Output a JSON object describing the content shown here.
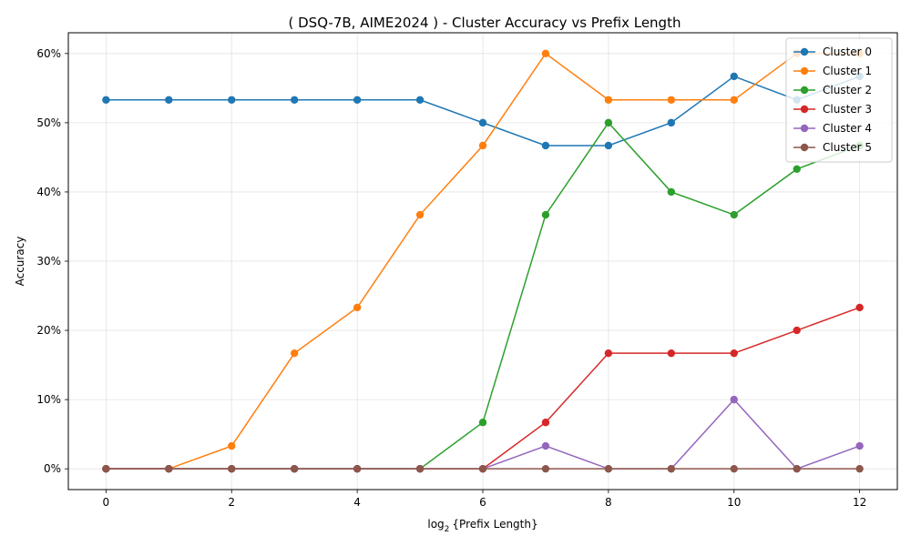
{
  "chart_data": {
    "type": "line",
    "title": "( DSQ-7B, AIME2024 ) - Cluster Accuracy vs Prefix Length",
    "xlabel_prefix": "log",
    "xlabel_sub": "2",
    "xlabel_rest": "{Prefix Length}",
    "ylabel": "Accuracy",
    "x": [
      0,
      1,
      2,
      3,
      4,
      5,
      6,
      7,
      8,
      9,
      10,
      11,
      12
    ],
    "xlim": [
      -0.6,
      12.6
    ],
    "ylim": [
      -0.03,
      0.63
    ],
    "xticks": [
      0,
      2,
      4,
      6,
      8,
      10,
      12
    ],
    "xtick_labels": [
      "0",
      "2",
      "4",
      "6",
      "8",
      "10",
      "12"
    ],
    "yticks": [
      0,
      0.1,
      0.2,
      0.3,
      0.4,
      0.5,
      0.6
    ],
    "ytick_labels": [
      "0%",
      "10%",
      "20%",
      "30%",
      "40%",
      "50%",
      "60%"
    ],
    "grid": true,
    "legend_position": "top-right",
    "series": [
      {
        "name": "Cluster 0",
        "color": "#1f77b4",
        "values": [
          0.533,
          0.533,
          0.533,
          0.533,
          0.533,
          0.533,
          0.5,
          0.467,
          0.467,
          0.5,
          0.567,
          0.533,
          0.567
        ]
      },
      {
        "name": "Cluster 1",
        "color": "#ff7f0e",
        "values": [
          0,
          0,
          0.033,
          0.167,
          0.233,
          0.367,
          0.467,
          0.6,
          0.533,
          0.533,
          0.533,
          0.6,
          0.6
        ]
      },
      {
        "name": "Cluster 2",
        "color": "#2ca02c",
        "values": [
          0,
          0,
          0,
          0,
          0,
          0,
          0.067,
          0.367,
          0.5,
          0.4,
          0.367,
          0.433,
          0.467
        ]
      },
      {
        "name": "Cluster 3",
        "color": "#d62728",
        "values": [
          0,
          0,
          0,
          0,
          0,
          0,
          0,
          0.067,
          0.167,
          0.167,
          0.167,
          0.2,
          0.233
        ]
      },
      {
        "name": "Cluster 4",
        "color": "#9467bd",
        "values": [
          0,
          0,
          0,
          0,
          0,
          0,
          0,
          0.033,
          0,
          0,
          0.1,
          0,
          0.033
        ]
      },
      {
        "name": "Cluster 5",
        "color": "#8c564b",
        "values": [
          0,
          0,
          0,
          0,
          0,
          0,
          0,
          0,
          0,
          0,
          0,
          0,
          0
        ]
      }
    ]
  }
}
